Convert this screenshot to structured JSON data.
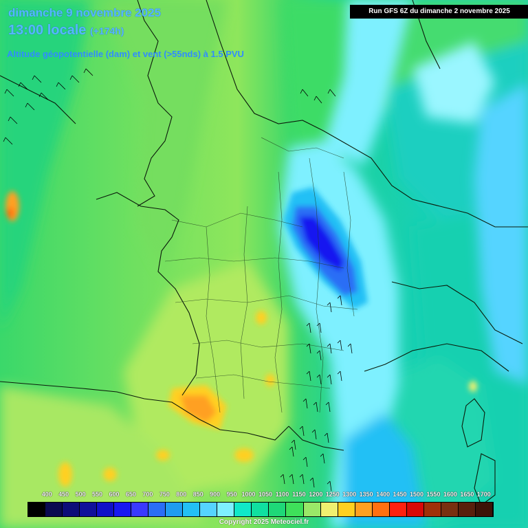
{
  "header": {
    "date_line": "dimanche 9 novembre 2025",
    "time_line": "13:00 locale",
    "lead_time": "(+174h)",
    "field_label": "Altitude géopotentielle (dam) et vent (>55nds) à 1.5 PVU",
    "run_label": "Run GFS 6Z du dimanche 2 novembre 2025"
  },
  "legend": {
    "labels": [
      "400",
      "450",
      "500",
      "550",
      "600",
      "650",
      "700",
      "750",
      "800",
      "850",
      "900",
      "950",
      "1000",
      "1050",
      "1100",
      "1150",
      "1200",
      "1250",
      "1300",
      "1350",
      "1400",
      "1450",
      "1500",
      "1550",
      "1600",
      "1650",
      "1700"
    ],
    "colors": [
      "#000000",
      "#0a0a50",
      "#0d0d78",
      "#10109a",
      "#1010c8",
      "#1818f0",
      "#3a3aff",
      "#2a6ef5",
      "#1f9cf0",
      "#23c0f5",
      "#55d4ff",
      "#7ef0ff",
      "#10e8c8",
      "#10e0a0",
      "#1ed878",
      "#3ee05a",
      "#9ae868",
      "#f0f070",
      "#ffd020",
      "#ffa020",
      "#ff7010",
      "#ff2010",
      "#d80808",
      "#a03008",
      "#783010",
      "#58200c",
      "#3c1408"
    ]
  },
  "footer": {
    "copyright": "Copyright 2025 Meteociel.fr"
  }
}
